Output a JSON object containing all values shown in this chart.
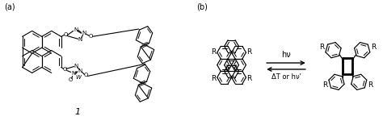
{
  "background_color": "#ffffff",
  "label_a": "(a)",
  "label_b": "(b)",
  "label_1": "1",
  "fig_width": 4.74,
  "fig_height": 1.65,
  "dpi": 100
}
